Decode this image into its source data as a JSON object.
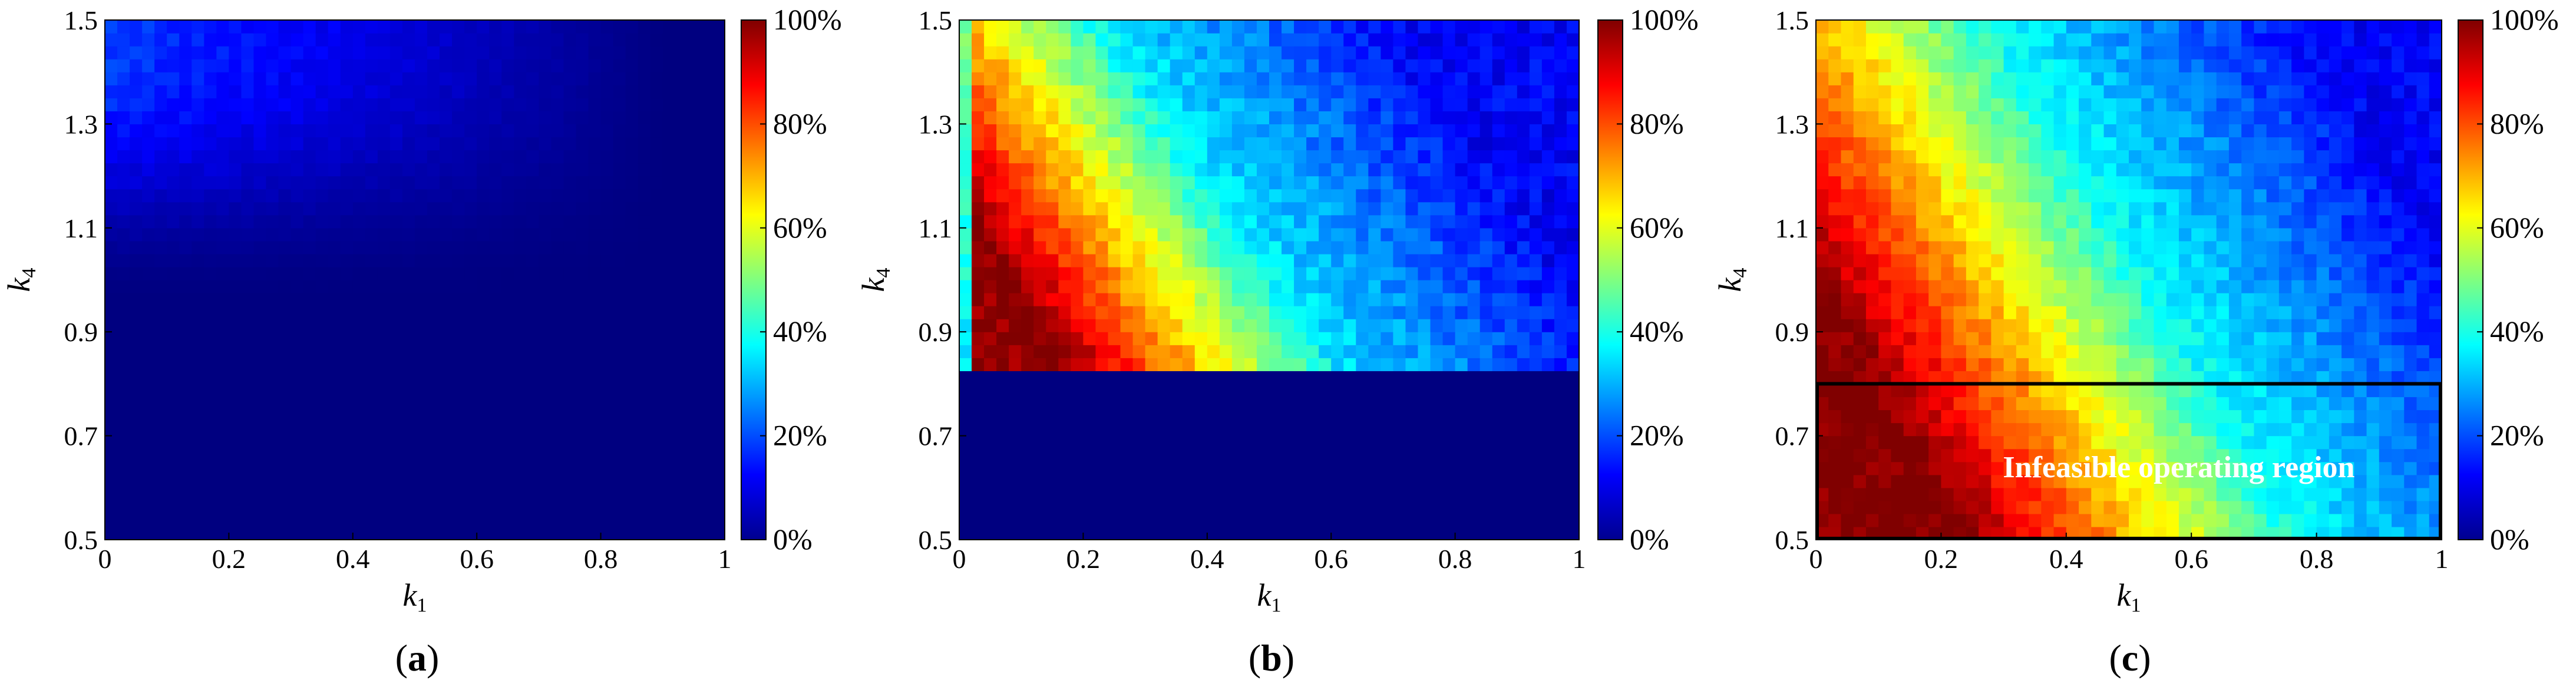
{
  "chart_data": [
    {
      "panel": "(a)",
      "caption_letter": "a",
      "type": "heatmap",
      "xlabel": "k1",
      "ylabel": "k4",
      "xlim": [
        0,
        1
      ],
      "ylim": [
        0.5,
        1.5
      ],
      "x_ticks": [
        "0",
        "0.2",
        "0.4",
        "0.6",
        "0.8",
        "1"
      ],
      "y_ticks": [
        "0.5",
        "0.7",
        "0.9",
        "1.1",
        "1.3",
        "1.5"
      ],
      "colorbar": {
        "min": 0,
        "max": 100,
        "ticks": [
          "0%",
          "20%",
          "40%",
          "60%",
          "80%",
          "100%"
        ]
      },
      "grid": {
        "nx": 50,
        "ny": 40
      },
      "description_values": "Nearly 0% everywhere; faint 10-20% values in upper-left region (k1 < 0.3, k4 > 1.0)",
      "surface": {
        "type": "upper_left_glow",
        "peak": 18
      },
      "annotation": ""
    },
    {
      "panel": "(b)",
      "caption_letter": "b",
      "type": "heatmap",
      "xlabel": "k1",
      "ylabel": "k4",
      "xlim": [
        0,
        1
      ],
      "ylim": [
        0.5,
        1.5
      ],
      "x_ticks": [
        "0",
        "0.2",
        "0.4",
        "0.6",
        "0.8",
        "1"
      ],
      "y_ticks": [
        "0.5",
        "0.7",
        "0.9",
        "1.1",
        "1.3",
        "1.5"
      ],
      "colorbar": {
        "min": 0,
        "max": 100,
        "ticks": [
          "0%",
          "20%",
          "40%",
          "60%",
          "80%",
          "100%"
        ]
      },
      "grid": {
        "nx": 50,
        "ny": 40
      },
      "surface": {
        "type": "diagonal_band",
        "zero_below_k4": 0.82,
        "low_at_k1_zero": true
      },
      "annotation": ""
    },
    {
      "panel": "(c)",
      "caption_letter": "c",
      "type": "heatmap",
      "xlabel": "k1",
      "ylabel": "k4",
      "xlim": [
        0,
        1
      ],
      "ylim": [
        0.5,
        1.5
      ],
      "x_ticks": [
        "0",
        "0.2",
        "0.4",
        "0.6",
        "0.8",
        "1"
      ],
      "y_ticks": [
        "0.5",
        "0.7",
        "0.9",
        "1.1",
        "1.3",
        "1.5"
      ],
      "colorbar": {
        "min": 0,
        "max": 100,
        "ticks": [
          "0%",
          "20%",
          "40%",
          "60%",
          "80%",
          "100%"
        ]
      },
      "grid": {
        "nx": 50,
        "ny": 40
      },
      "surface": {
        "type": "diagonal_band_full"
      },
      "annotation": "Infeasible operating region",
      "region_box": {
        "k1": [
          0,
          1
        ],
        "k4": [
          0.5,
          0.8
        ]
      }
    }
  ]
}
